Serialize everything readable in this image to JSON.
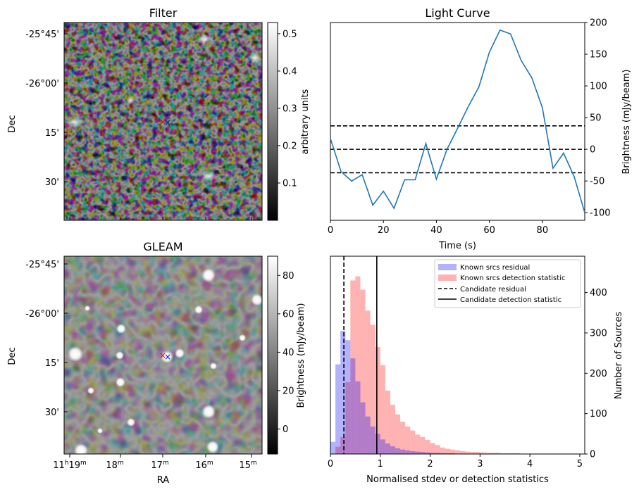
{
  "panels": {
    "filter": {
      "title": "Filter",
      "ylabel": "Dec",
      "dec_ticks": [
        "-25°45'",
        "-26°00'",
        "15'",
        "30'"
      ],
      "colorbar": {
        "label": "arbitrary units",
        "ticks": [
          "0.1",
          "0.2",
          "0.3",
          "0.4",
          "0.5"
        ],
        "range": [
          0.0,
          0.53
        ]
      }
    },
    "gleam": {
      "title": "GLEAM",
      "ylabel": "Dec",
      "xlabel": "RA",
      "dec_ticks": [
        "-25°45'",
        "-26°00'",
        "15'",
        "30'"
      ],
      "ra_ticks": [
        {
          "main": "11",
          "h": "h",
          "mm": "19",
          "m": "m"
        },
        {
          "main": "",
          "h": "",
          "mm": "18",
          "m": "m"
        },
        {
          "main": "",
          "h": "",
          "mm": "17",
          "m": "m"
        },
        {
          "main": "",
          "h": "",
          "mm": "16",
          "m": "m"
        },
        {
          "main": "",
          "h": "",
          "mm": "15",
          "m": "m"
        }
      ],
      "colorbar": {
        "label": "Brightness (mJy/beam)",
        "ticks": [
          "0",
          "20",
          "40",
          "60",
          "80"
        ],
        "range": [
          -13,
          90
        ]
      }
    },
    "markers": {
      "red_color": "#ff0000",
      "blue_color": "#0000ff"
    }
  },
  "chart_data": [
    {
      "type": "line",
      "title": "Light Curve",
      "xlabel": "Time (s)",
      "ylabel": "Brightness (mJy/beam)",
      "xlim": [
        0,
        96
      ],
      "ylim": [
        -112,
        200
      ],
      "x_ticks": [
        "0",
        "20",
        "40",
        "60",
        "80"
      ],
      "y_ticks": [
        "-100",
        "-50",
        "0",
        "50",
        "100",
        "150",
        "200"
      ],
      "color": "#1f77b4",
      "x": [
        0,
        4,
        8,
        12,
        16,
        20,
        24,
        28,
        32,
        36,
        40,
        44,
        48,
        52,
        56,
        60,
        64,
        68,
        72,
        76,
        80,
        84,
        88,
        92,
        96
      ],
      "y": [
        17,
        -35,
        -50,
        -40,
        -88,
        -66,
        -93,
        -48,
        -48,
        9,
        -47,
        0,
        33,
        67,
        98,
        153,
        188,
        182,
        140,
        113,
        66,
        -30,
        -6,
        -43,
        -100
      ],
      "hlines": [
        37,
        0,
        -37
      ]
    },
    {
      "type": "bar",
      "xlabel": "Normalised stdev or detection statistics",
      "ylabel": "Number of Sources",
      "xlim": [
        0,
        5.1
      ],
      "ylim": [
        0,
        490
      ],
      "x_ticks": [
        "0",
        "1",
        "2",
        "3",
        "4",
        "5"
      ],
      "y_ticks": [
        "0",
        "100",
        "200",
        "300",
        "400"
      ],
      "bin_width": 0.1,
      "series": [
        {
          "name": "Known srcs residual",
          "color": "#0000ff",
          "bin_start": 0.0,
          "values": [
            30,
            222,
            305,
            282,
            237,
            180,
            128,
            93,
            68,
            50,
            36,
            26,
            19,
            14,
            11,
            9,
            7,
            6,
            5,
            4,
            3,
            3,
            2,
            2,
            2,
            1,
            1,
            1
          ]
        },
        {
          "name": "Known srcs detection statistic",
          "color": "#ff0000",
          "bin_start": 0.1,
          "values": [
            18,
            42,
            178,
            430,
            440,
            407,
            355,
            320,
            265,
            220,
            157,
            122,
            98,
            80,
            68,
            58,
            48,
            42,
            35,
            27,
            22,
            16,
            13,
            11,
            9,
            7,
            6,
            5,
            5,
            4,
            3,
            3,
            3,
            2,
            2,
            2,
            2,
            1,
            1,
            1,
            1,
            1,
            1,
            1,
            1,
            1,
            1,
            1,
            1
          ]
        }
      ],
      "vlines": [
        {
          "name": "Candidate residual",
          "x": 0.27,
          "style": "dashed"
        },
        {
          "name": "Candidate detection statistic",
          "x": 0.93,
          "style": "solid"
        }
      ],
      "legend": "top-right"
    }
  ]
}
